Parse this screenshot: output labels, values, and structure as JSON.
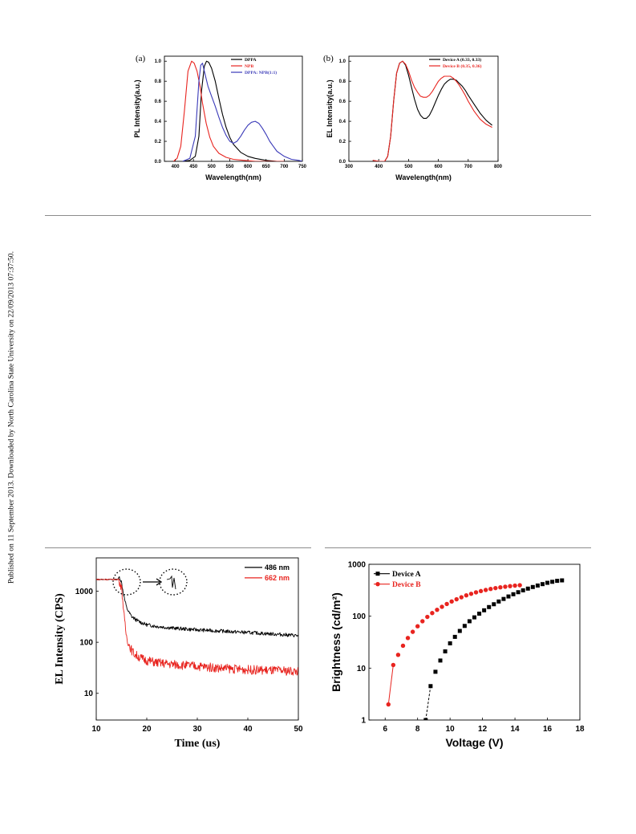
{
  "sidebar": "Published on 11 September 2013. Downloaded by North Carolina State University on 22/09/2013 07:37:50.",
  "colors": {
    "black": "#000000",
    "red": "#e8241f",
    "blue": "#3a3ab8",
    "rule": "#8c8c8c"
  },
  "chart_data": [
    {
      "id": "a",
      "type": "line",
      "panel_label": "(a)",
      "xlabel": "Wavelength(nm)",
      "ylabel": "PL  Intensity(a.u.)",
      "xlim": [
        370,
        750
      ],
      "ylim": [
        0,
        1.05
      ],
      "xticks": [
        "400",
        "450",
        "500",
        "550",
        "600",
        "650",
        "700",
        "750"
      ],
      "yticks": [
        "0.0",
        "0.2",
        "0.4",
        "0.6",
        "0.8",
        "1.0"
      ],
      "legend_position": "top-right",
      "series": [
        {
          "name": "DPPA",
          "color": "#000000",
          "x": [
            390,
            420,
            440,
            455,
            465,
            472,
            480,
            486,
            492,
            500,
            510,
            520,
            530,
            540,
            550,
            560,
            580,
            600,
            620,
            650,
            680,
            720,
            750
          ],
          "y": [
            0.0,
            0.0,
            0.01,
            0.05,
            0.25,
            0.7,
            0.95,
            1.0,
            0.99,
            0.93,
            0.8,
            0.63,
            0.47,
            0.34,
            0.24,
            0.17,
            0.09,
            0.05,
            0.03,
            0.01,
            0.0,
            0.0,
            0.0
          ]
        },
        {
          "name": "NPB",
          "color": "#e8241f",
          "x": [
            395,
            405,
            415,
            425,
            435,
            445,
            452,
            460,
            468,
            475,
            485,
            495,
            505,
            520,
            540,
            560,
            590,
            620,
            660,
            700
          ],
          "y": [
            0.0,
            0.03,
            0.15,
            0.5,
            0.9,
            1.0,
            0.98,
            0.9,
            0.75,
            0.58,
            0.38,
            0.24,
            0.15,
            0.08,
            0.04,
            0.02,
            0.01,
            0.0,
            0.0,
            0.0
          ]
        },
        {
          "name": "DPPA: NPB(1:1)",
          "color": "#3a3ab8",
          "x": [
            420,
            440,
            455,
            465,
            470,
            475,
            480,
            490,
            500,
            510,
            520,
            530,
            540,
            550,
            560,
            570,
            580,
            590,
            600,
            610,
            620,
            630,
            640,
            650,
            660,
            670,
            680,
            700,
            720,
            740,
            750
          ],
          "y": [
            0.0,
            0.03,
            0.25,
            0.8,
            0.96,
            0.98,
            0.9,
            0.75,
            0.65,
            0.55,
            0.44,
            0.34,
            0.26,
            0.2,
            0.18,
            0.2,
            0.25,
            0.31,
            0.36,
            0.39,
            0.4,
            0.38,
            0.33,
            0.27,
            0.2,
            0.15,
            0.1,
            0.05,
            0.02,
            0.01,
            0.0
          ]
        }
      ]
    },
    {
      "id": "b",
      "type": "line",
      "panel_label": "(b)",
      "xlabel": "Wavelength(nm)",
      "ylabel": "EL  Intensity(a.u.)",
      "xlim": [
        300,
        800
      ],
      "ylim": [
        0,
        1.05
      ],
      "xticks": [
        "300",
        "400",
        "500",
        "600",
        "700",
        "800"
      ],
      "yticks": [
        "0.0",
        "0.2",
        "0.4",
        "0.6",
        "0.8",
        "1.0"
      ],
      "legend_position": "top-right",
      "series": [
        {
          "name": "Device A (0.33, 0.33)",
          "color": "#000000",
          "x": [
            380,
            400,
            420,
            430,
            440,
            450,
            460,
            470,
            480,
            490,
            500,
            510,
            520,
            530,
            540,
            550,
            560,
            570,
            580,
            590,
            600,
            610,
            620,
            630,
            640,
            650,
            660,
            670,
            680,
            690,
            700,
            720,
            740,
            760,
            780
          ],
          "y": [
            0.01,
            0.0,
            0.0,
            0.05,
            0.25,
            0.6,
            0.88,
            0.98,
            1.0,
            0.96,
            0.86,
            0.74,
            0.62,
            0.52,
            0.46,
            0.43,
            0.43,
            0.46,
            0.52,
            0.59,
            0.66,
            0.72,
            0.77,
            0.8,
            0.82,
            0.82,
            0.81,
            0.78,
            0.75,
            0.71,
            0.66,
            0.57,
            0.48,
            0.41,
            0.36
          ]
        },
        {
          "name": "Device B (0.35, 0.36)",
          "color": "#e8241f",
          "x": [
            380,
            400,
            420,
            430,
            440,
            450,
            460,
            470,
            480,
            490,
            500,
            510,
            520,
            530,
            540,
            550,
            560,
            570,
            580,
            590,
            600,
            610,
            620,
            630,
            640,
            650,
            660,
            670,
            680,
            690,
            700,
            720,
            740,
            760,
            780
          ],
          "y": [
            0.01,
            0.0,
            0.0,
            0.05,
            0.25,
            0.6,
            0.88,
            0.98,
            1.0,
            0.97,
            0.9,
            0.81,
            0.74,
            0.69,
            0.65,
            0.64,
            0.64,
            0.66,
            0.7,
            0.75,
            0.8,
            0.83,
            0.85,
            0.85,
            0.85,
            0.83,
            0.8,
            0.76,
            0.71,
            0.66,
            0.6,
            0.5,
            0.42,
            0.37,
            0.34
          ]
        }
      ]
    },
    {
      "id": "c",
      "type": "line",
      "xlabel": "Time (us)",
      "ylabel": "EL Intensity (CPS)",
      "log_y": true,
      "xlim": [
        10,
        50
      ],
      "ylim": [
        3,
        4500
      ],
      "xticks": [
        "10",
        "20",
        "30",
        "40",
        "50"
      ],
      "yticks": [
        "10",
        "100",
        "1000"
      ],
      "ytick_values": [
        10,
        100,
        1000
      ],
      "xtick_values": [
        10,
        20,
        30,
        40,
        50
      ],
      "legend_position": "top-right",
      "inset": "dotted circles with arrow",
      "series": [
        {
          "name": "486 nm",
          "color": "#000000",
          "x": [
            10,
            14.2,
            14.6,
            15,
            15.3,
            15.6,
            16,
            16.5,
            17,
            18,
            19,
            20,
            22,
            25,
            30,
            35,
            40,
            45,
            50
          ],
          "y": [
            1700,
            1700,
            1900,
            1500,
            1000,
            700,
            480,
            380,
            320,
            270,
            240,
            220,
            205,
            190,
            175,
            165,
            155,
            145,
            135
          ]
        },
        {
          "name": "662 nm",
          "color": "#e8241f",
          "x": [
            10,
            14.5,
            15,
            15.3,
            15.6,
            16,
            16.5,
            17,
            17.5,
            18,
            19,
            20,
            22,
            25,
            30,
            35,
            40,
            45,
            50
          ],
          "y": [
            1700,
            1700,
            1200,
            600,
            250,
            130,
            90,
            70,
            60,
            55,
            48,
            44,
            40,
            37,
            34,
            31,
            29,
            28,
            27
          ]
        }
      ]
    },
    {
      "id": "d",
      "type": "scatter",
      "xlabel": "Voltage (V)",
      "ylabel": "Brightness (cd/m²)",
      "log_y": true,
      "xlim": [
        5,
        18
      ],
      "ylim": [
        1,
        1000
      ],
      "xticks": [
        "6",
        "8",
        "10",
        "12",
        "14",
        "16",
        "18"
      ],
      "xtick_values": [
        6,
        8,
        10,
        12,
        14,
        16,
        18
      ],
      "yticks": [
        "1",
        "10",
        "100",
        "1000"
      ],
      "ytick_values": [
        1,
        10,
        100,
        1000
      ],
      "legend_position": "top-left",
      "series": [
        {
          "name": "Device A",
          "color": "#000000",
          "marker": "square",
          "x": [
            8.5,
            8.8,
            9.1,
            9.4,
            9.7,
            10.0,
            10.3,
            10.6,
            10.9,
            11.2,
            11.5,
            11.8,
            12.1,
            12.4,
            12.7,
            13.0,
            13.3,
            13.6,
            13.9,
            14.2,
            14.5,
            14.8,
            15.1,
            15.4,
            15.7,
            16.0,
            16.3,
            16.6,
            16.9
          ],
          "y": [
            1.0,
            4.5,
            8.5,
            14,
            21,
            30,
            40,
            52,
            65,
            80,
            95,
            112,
            130,
            150,
            170,
            192,
            215,
            240,
            265,
            290,
            315,
            340,
            365,
            390,
            415,
            440,
            460,
            480,
            490
          ]
        },
        {
          "name": "Device B",
          "color": "#e8241f",
          "marker": "circle",
          "x": [
            6.2,
            6.5,
            6.8,
            7.1,
            7.4,
            7.7,
            8.0,
            8.3,
            8.6,
            8.9,
            9.2,
            9.5,
            9.8,
            10.1,
            10.4,
            10.7,
            11.0,
            11.3,
            11.6,
            11.9,
            12.2,
            12.5,
            12.8,
            13.1,
            13.4,
            13.7,
            14.0,
            14.3
          ],
          "y": [
            2.0,
            11.5,
            18,
            27,
            38,
            50,
            64,
            80,
            97,
            115,
            133,
            152,
            172,
            192,
            212,
            232,
            252,
            270,
            288,
            305,
            320,
            335,
            348,
            360,
            370,
            380,
            388,
            395
          ]
        }
      ]
    }
  ]
}
